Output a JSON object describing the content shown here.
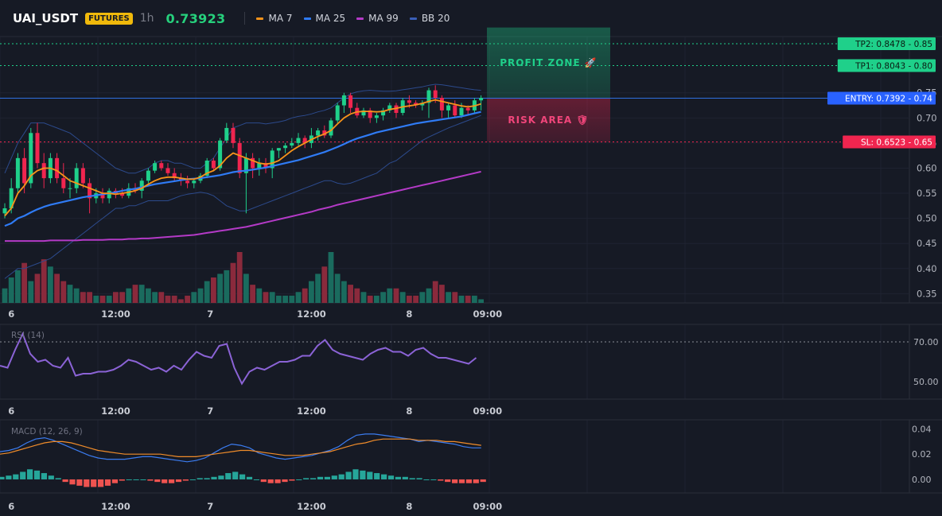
{
  "header": {
    "symbol": "UAI_USDT",
    "badge": "FUTURES",
    "timeframe": "1h",
    "price": "0.73923",
    "legend": [
      {
        "label": "MA 7",
        "color": "#f7931a"
      },
      {
        "label": "MA 25",
        "color": "#2f7bf5"
      },
      {
        "label": "MA 99",
        "color": "#b43ac7"
      },
      {
        "label": "BB 20",
        "color": "#3a5fb8"
      }
    ]
  },
  "colors": {
    "up": "#1fd08a",
    "down": "#f0254f",
    "vol_up": "#1a6b5e",
    "vol_down": "#8a2a3c",
    "rsi": "#8b63d6",
    "macd": "#3b7cf0",
    "signal": "#f08c2a",
    "hist_up": "#26a69a",
    "hist_down": "#ef5350",
    "entry": "#2f6fe0",
    "tp": "#1fd08a",
    "sl": "#f0254f"
  },
  "x_axis": {
    "labels": [
      {
        "text": "6",
        "index": 1
      },
      {
        "text": "12:00",
        "index": 17
      },
      {
        "text": "7",
        "index": 31.5
      },
      {
        "text": "12:00",
        "index": 47
      },
      {
        "text": "8",
        "index": 62
      },
      {
        "text": "09:00",
        "index": 74
      }
    ]
  },
  "chart_data": [
    {
      "type": "candlestick",
      "title": "UAI_USDT",
      "ylim": [
        0.33,
        0.9
      ],
      "yticks": [
        "0.35",
        "0.40",
        "0.45",
        "0.50",
        "0.55",
        "0.60",
        "0.65",
        "0.70",
        "0.75"
      ],
      "candles": [
        [
          0.51,
          0.53,
          0.5,
          0.52
        ],
        [
          0.52,
          0.58,
          0.51,
          0.56
        ],
        [
          0.56,
          0.63,
          0.55,
          0.62
        ],
        [
          0.62,
          0.64,
          0.55,
          0.57
        ],
        [
          0.57,
          0.68,
          0.56,
          0.67
        ],
        [
          0.67,
          0.69,
          0.6,
          0.61
        ],
        [
          0.61,
          0.63,
          0.56,
          0.58
        ],
        [
          0.58,
          0.63,
          0.57,
          0.62
        ],
        [
          0.62,
          0.63,
          0.57,
          0.58
        ],
        [
          0.58,
          0.61,
          0.55,
          0.56
        ],
        [
          0.56,
          0.58,
          0.54,
          0.56
        ],
        [
          0.56,
          0.61,
          0.55,
          0.6
        ],
        [
          0.6,
          0.61,
          0.56,
          0.57
        ],
        [
          0.57,
          0.58,
          0.51,
          0.54
        ],
        [
          0.54,
          0.56,
          0.53,
          0.55
        ],
        [
          0.55,
          0.56,
          0.53,
          0.54
        ],
        [
          0.54,
          0.56,
          0.53,
          0.555
        ],
        [
          0.555,
          0.56,
          0.54,
          0.55
        ],
        [
          0.55,
          0.56,
          0.54,
          0.545
        ],
        [
          0.545,
          0.57,
          0.54,
          0.56
        ],
        [
          0.56,
          0.57,
          0.55,
          0.555
        ],
        [
          0.555,
          0.58,
          0.54,
          0.575
        ],
        [
          0.575,
          0.6,
          0.57,
          0.595
        ],
        [
          0.595,
          0.615,
          0.59,
          0.61
        ],
        [
          0.61,
          0.615,
          0.595,
          0.6
        ],
        [
          0.6,
          0.61,
          0.585,
          0.59
        ],
        [
          0.59,
          0.6,
          0.575,
          0.58
        ],
        [
          0.58,
          0.59,
          0.565,
          0.575
        ],
        [
          0.575,
          0.585,
          0.56,
          0.57
        ],
        [
          0.57,
          0.58,
          0.56,
          0.575
        ],
        [
          0.575,
          0.59,
          0.57,
          0.585
        ],
        [
          0.585,
          0.62,
          0.58,
          0.615
        ],
        [
          0.615,
          0.62,
          0.595,
          0.6
        ],
        [
          0.6,
          0.66,
          0.595,
          0.655
        ],
        [
          0.655,
          0.69,
          0.65,
          0.68
        ],
        [
          0.68,
          0.69,
          0.64,
          0.65
        ],
        [
          0.65,
          0.66,
          0.58,
          0.59
        ],
        [
          0.59,
          0.63,
          0.51,
          0.62
        ],
        [
          0.62,
          0.63,
          0.58,
          0.6
        ],
        [
          0.6,
          0.62,
          0.585,
          0.61
        ],
        [
          0.61,
          0.62,
          0.59,
          0.6
        ],
        [
          0.6,
          0.64,
          0.58,
          0.635
        ],
        [
          0.635,
          0.64,
          0.62,
          0.64
        ],
        [
          0.64,
          0.65,
          0.63,
          0.645
        ],
        [
          0.645,
          0.66,
          0.64,
          0.65
        ],
        [
          0.65,
          0.67,
          0.645,
          0.66
        ],
        [
          0.66,
          0.665,
          0.64,
          0.65
        ],
        [
          0.65,
          0.68,
          0.64,
          0.665
        ],
        [
          0.665,
          0.68,
          0.655,
          0.675
        ],
        [
          0.675,
          0.685,
          0.66,
          0.665
        ],
        [
          0.665,
          0.7,
          0.66,
          0.695
        ],
        [
          0.695,
          0.73,
          0.69,
          0.725
        ],
        [
          0.725,
          0.75,
          0.71,
          0.745
        ],
        [
          0.745,
          0.75,
          0.71,
          0.72
        ],
        [
          0.72,
          0.73,
          0.7,
          0.705
        ],
        [
          0.705,
          0.72,
          0.7,
          0.715
        ],
        [
          0.715,
          0.72,
          0.69,
          0.7
        ],
        [
          0.7,
          0.71,
          0.69,
          0.705
        ],
        [
          0.705,
          0.72,
          0.695,
          0.715
        ],
        [
          0.715,
          0.73,
          0.71,
          0.725
        ],
        [
          0.725,
          0.73,
          0.7,
          0.71
        ],
        [
          0.71,
          0.74,
          0.705,
          0.735
        ],
        [
          0.735,
          0.745,
          0.72,
          0.73
        ],
        [
          0.73,
          0.735,
          0.72,
          0.725
        ],
        [
          0.725,
          0.735,
          0.715,
          0.73
        ],
        [
          0.73,
          0.76,
          0.7,
          0.755
        ],
        [
          0.755,
          0.765,
          0.73,
          0.74
        ],
        [
          0.74,
          0.745,
          0.7,
          0.715
        ],
        [
          0.715,
          0.73,
          0.7,
          0.725
        ],
        [
          0.725,
          0.735,
          0.7,
          0.705
        ],
        [
          0.705,
          0.73,
          0.7,
          0.72
        ],
        [
          0.72,
          0.725,
          0.705,
          0.715
        ],
        [
          0.715,
          0.74,
          0.71,
          0.735
        ],
        [
          0.735,
          0.745,
          0.715,
          0.74
        ]
      ],
      "volume": [
        4,
        7,
        9,
        11,
        6,
        8,
        12,
        10,
        8,
        6,
        5,
        4,
        3,
        3,
        2,
        2,
        2,
        3,
        3,
        4,
        5,
        5,
        4,
        3,
        3,
        2,
        2,
        1,
        2,
        3,
        4,
        6,
        7,
        8,
        9,
        11,
        14,
        8,
        5,
        4,
        3,
        3,
        2,
        2,
        2,
        3,
        4,
        6,
        8,
        10,
        14,
        8,
        6,
        5,
        4,
        3,
        2,
        2,
        3,
        4,
        4,
        3,
        2,
        2,
        3,
        4,
        6,
        5,
        3,
        3,
        2,
        2,
        2,
        1
      ],
      "ma7": [
        0.505,
        0.52,
        0.55,
        0.565,
        0.585,
        0.595,
        0.6,
        0.6,
        0.595,
        0.585,
        0.575,
        0.57,
        0.565,
        0.56,
        0.555,
        0.55,
        0.55,
        0.548,
        0.55,
        0.552,
        0.555,
        0.56,
        0.568,
        0.575,
        0.58,
        0.582,
        0.582,
        0.58,
        0.578,
        0.578,
        0.582,
        0.59,
        0.595,
        0.605,
        0.62,
        0.63,
        0.625,
        0.62,
        0.615,
        0.61,
        0.608,
        0.61,
        0.615,
        0.625,
        0.635,
        0.643,
        0.65,
        0.657,
        0.663,
        0.668,
        0.675,
        0.688,
        0.7,
        0.708,
        0.712,
        0.713,
        0.713,
        0.712,
        0.713,
        0.717,
        0.719,
        0.722,
        0.724,
        0.726,
        0.729,
        0.733,
        0.736,
        0.733,
        0.73,
        0.727,
        0.724,
        0.722,
        0.724,
        0.728
      ],
      "ma25": [
        0.485,
        0.49,
        0.5,
        0.505,
        0.512,
        0.518,
        0.523,
        0.527,
        0.53,
        0.533,
        0.536,
        0.539,
        0.542,
        0.544,
        0.546,
        0.548,
        0.55,
        0.552,
        0.555,
        0.557,
        0.559,
        0.562,
        0.565,
        0.568,
        0.57,
        0.572,
        0.574,
        0.576,
        0.578,
        0.579,
        0.58,
        0.582,
        0.584,
        0.586,
        0.589,
        0.592,
        0.594,
        0.595,
        0.597,
        0.599,
        0.601,
        0.604,
        0.607,
        0.61,
        0.613,
        0.616,
        0.62,
        0.624,
        0.628,
        0.632,
        0.637,
        0.642,
        0.648,
        0.654,
        0.659,
        0.663,
        0.667,
        0.671,
        0.674,
        0.677,
        0.68,
        0.683,
        0.686,
        0.689,
        0.691,
        0.693,
        0.695,
        0.697,
        0.699,
        0.701,
        0.703,
        0.706,
        0.709,
        0.712
      ],
      "ma99": [
        0.455,
        0.455,
        0.455,
        0.455,
        0.455,
        0.455,
        0.455,
        0.456,
        0.456,
        0.456,
        0.456,
        0.456,
        0.457,
        0.457,
        0.457,
        0.457,
        0.458,
        0.458,
        0.458,
        0.459,
        0.459,
        0.46,
        0.46,
        0.461,
        0.462,
        0.463,
        0.464,
        0.465,
        0.466,
        0.467,
        0.469,
        0.471,
        0.473,
        0.475,
        0.477,
        0.479,
        0.481,
        0.483,
        0.486,
        0.489,
        0.492,
        0.495,
        0.498,
        0.501,
        0.504,
        0.507,
        0.51,
        0.513,
        0.517,
        0.52,
        0.523,
        0.527,
        0.53,
        0.533,
        0.536,
        0.539,
        0.542,
        0.545,
        0.548,
        0.551,
        0.554,
        0.557,
        0.56,
        0.563,
        0.566,
        0.569,
        0.572,
        0.575,
        0.578,
        0.581,
        0.584,
        0.587,
        0.59,
        0.593
      ],
      "bb_upper": [
        0.59,
        0.62,
        0.65,
        0.67,
        0.69,
        0.69,
        0.69,
        0.685,
        0.68,
        0.675,
        0.67,
        0.66,
        0.65,
        0.64,
        0.63,
        0.62,
        0.61,
        0.6,
        0.595,
        0.59,
        0.59,
        0.595,
        0.6,
        0.61,
        0.615,
        0.615,
        0.61,
        0.61,
        0.605,
        0.6,
        0.6,
        0.61,
        0.62,
        0.64,
        0.66,
        0.68,
        0.685,
        0.69,
        0.69,
        0.69,
        0.688,
        0.69,
        0.692,
        0.695,
        0.7,
        0.703,
        0.705,
        0.708,
        0.712,
        0.715,
        0.72,
        0.73,
        0.74,
        0.748,
        0.752,
        0.754,
        0.755,
        0.754,
        0.753,
        0.753,
        0.754,
        0.756,
        0.758,
        0.76,
        0.762,
        0.765,
        0.767,
        0.766,
        0.764,
        0.762,
        0.76,
        0.758,
        0.756,
        0.755
      ],
      "bb_lower": [
        0.38,
        0.39,
        0.4,
        0.4,
        0.405,
        0.41,
        0.415,
        0.42,
        0.43,
        0.44,
        0.45,
        0.46,
        0.47,
        0.48,
        0.49,
        0.5,
        0.51,
        0.52,
        0.52,
        0.525,
        0.525,
        0.53,
        0.535,
        0.535,
        0.535,
        0.535,
        0.54,
        0.545,
        0.548,
        0.55,
        0.552,
        0.55,
        0.545,
        0.535,
        0.525,
        0.52,
        0.515,
        0.515,
        0.52,
        0.525,
        0.53,
        0.535,
        0.54,
        0.545,
        0.55,
        0.555,
        0.56,
        0.565,
        0.57,
        0.575,
        0.575,
        0.57,
        0.568,
        0.57,
        0.575,
        0.58,
        0.585,
        0.59,
        0.6,
        0.61,
        0.615,
        0.625,
        0.635,
        0.645,
        0.655,
        0.662,
        0.668,
        0.674,
        0.68,
        0.685,
        0.69,
        0.695,
        0.7,
        0.705
      ],
      "levels": [
        {
          "name": "TP2",
          "value": 0.8478,
          "label": "TP2: 0.8478",
          "axis": "0.85"
        },
        {
          "name": "TP1",
          "value": 0.8043,
          "label": "TP1: 0.8043",
          "axis": "0.80"
        },
        {
          "name": "ENTRY",
          "value": 0.7392,
          "label": "ENTRY: 0.7392",
          "axis": "0.74"
        },
        {
          "name": "SL",
          "value": 0.6523,
          "label": "SL: 0.6523",
          "axis": "0.65"
        }
      ],
      "zones": [
        {
          "label": "PROFIT ZONE 🚀",
          "from": 0.7392,
          "to": 0.88,
          "color": "#1fd08a"
        },
        {
          "label": "RISK AREA 🛡",
          "from": 0.6523,
          "to": 0.7392,
          "color": "#f0254f"
        }
      ]
    },
    {
      "type": "line",
      "title": "RSI (14)",
      "ylim": [
        42,
        78
      ],
      "yticks": [
        "70.00",
        "50.00"
      ],
      "reference": 70,
      "values": [
        58,
        57,
        66,
        74,
        64,
        60,
        61,
        58,
        57,
        62,
        53,
        54,
        54,
        55,
        55,
        56,
        58,
        61,
        60,
        58,
        56,
        57,
        55,
        58,
        56,
        61,
        65,
        63,
        62,
        68,
        69,
        57,
        49,
        55,
        57,
        56,
        58,
        60,
        60,
        61,
        63,
        63,
        68,
        71,
        66,
        64,
        63,
        62,
        61,
        64,
        66,
        67,
        65,
        65,
        63,
        66,
        67,
        64,
        62,
        62,
        61,
        60,
        59,
        62
      ]
    },
    {
      "type": "line",
      "title": "MACD (12, 26, 9)",
      "ylim": [
        -0.012,
        0.046
      ],
      "yticks": [
        "0.04",
        "0.02",
        "0.00"
      ],
      "macd": [
        0.022,
        0.023,
        0.025,
        0.029,
        0.032,
        0.033,
        0.031,
        0.028,
        0.025,
        0.022,
        0.019,
        0.017,
        0.016,
        0.016,
        0.016,
        0.017,
        0.018,
        0.018,
        0.017,
        0.016,
        0.015,
        0.014,
        0.015,
        0.017,
        0.021,
        0.025,
        0.028,
        0.027,
        0.025,
        0.021,
        0.019,
        0.017,
        0.016,
        0.017,
        0.018,
        0.019,
        0.021,
        0.023,
        0.026,
        0.031,
        0.035,
        0.036,
        0.036,
        0.035,
        0.034,
        0.033,
        0.032,
        0.03,
        0.031,
        0.03,
        0.029,
        0.028,
        0.026,
        0.025,
        0.025
      ],
      "signal": [
        0.02,
        0.021,
        0.023,
        0.025,
        0.027,
        0.029,
        0.03,
        0.03,
        0.029,
        0.027,
        0.025,
        0.023,
        0.022,
        0.021,
        0.02,
        0.02,
        0.02,
        0.02,
        0.02,
        0.019,
        0.018,
        0.018,
        0.018,
        0.019,
        0.02,
        0.021,
        0.022,
        0.023,
        0.023,
        0.022,
        0.021,
        0.02,
        0.019,
        0.019,
        0.019,
        0.02,
        0.021,
        0.022,
        0.024,
        0.026,
        0.028,
        0.029,
        0.031,
        0.032,
        0.032,
        0.032,
        0.032,
        0.031,
        0.031,
        0.031,
        0.03,
        0.03,
        0.029,
        0.028,
        0.027
      ],
      "histogram": [
        0.002,
        0.003,
        0.004,
        0.006,
        0.008,
        0.007,
        0.005,
        0.003,
        0.001,
        -0.002,
        -0.004,
        -0.005,
        -0.006,
        -0.006,
        -0.006,
        -0.005,
        -0.003,
        -0.001,
        0,
        0,
        0,
        -0.001,
        -0.002,
        -0.003,
        -0.003,
        -0.002,
        -0.001,
        0,
        0.001,
        0.001,
        0.002,
        0.003,
        0.005,
        0.006,
        0.004,
        0.002,
        0,
        -0.002,
        -0.003,
        -0.003,
        -0.002,
        -0.001,
        0,
        0.001,
        0.001,
        0.002,
        0.002,
        0.003,
        0.004,
        0.006,
        0.008,
        0.007,
        0.006,
        0.005,
        0.004,
        0.003,
        0.002,
        0.002,
        0.001,
        0.001,
        0,
        0,
        -0.001,
        -0.002,
        -0.003,
        -0.003,
        -0.003,
        -0.003,
        -0.002
      ]
    }
  ]
}
